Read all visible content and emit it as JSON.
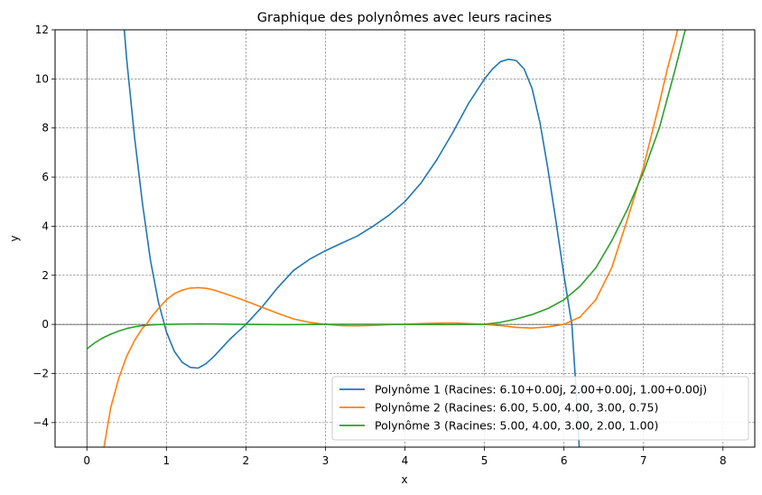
{
  "chart_data": {
    "type": "line",
    "title": "Graphique des polynômes avec leurs racines",
    "xlabel": "x",
    "ylabel": "y",
    "xlim": [
      -0.4,
      8.4
    ],
    "ylim": [
      -5,
      12
    ],
    "xticks": [
      0,
      1,
      2,
      3,
      4,
      5,
      6,
      7,
      8
    ],
    "yticks": [
      -4,
      -2,
      0,
      2,
      4,
      6,
      8,
      10,
      12
    ],
    "xtick_labels": [
      "0",
      "1",
      "2",
      "3",
      "4",
      "5",
      "6",
      "7",
      "8"
    ],
    "ytick_labels": [
      "−4",
      "−2",
      "0",
      "2",
      "4",
      "6",
      "8",
      "10",
      "12"
    ],
    "grid": true,
    "legend_position": "lower-right",
    "series": [
      {
        "name": "Polynôme 1 (Racines: 6.10+0.00j, 2.00+0.00j, 1.00+0.00j)",
        "color": "#1f77b4",
        "x": [
          0.45,
          0.5,
          0.6,
          0.7,
          0.8,
          0.9,
          1.0,
          1.1,
          1.2,
          1.3,
          1.4,
          1.5,
          1.6,
          1.7,
          1.8,
          1.9,
          2.0,
          2.2,
          2.4,
          2.6,
          2.8,
          3.0,
          3.2,
          3.4,
          3.6,
          3.8,
          4.0,
          4.2,
          4.4,
          4.6,
          4.8,
          5.0,
          5.1,
          5.2,
          5.3,
          5.4,
          5.5,
          5.6,
          5.7,
          5.8,
          5.9,
          6.0,
          6.1,
          6.15,
          6.2
        ],
        "y": [
          12.8,
          10.8,
          7.6,
          4.9,
          2.6,
          0.9,
          -0.3,
          -1.1,
          -1.55,
          -1.75,
          -1.78,
          -1.6,
          -1.3,
          -0.95,
          -0.6,
          -0.3,
          0.0,
          0.7,
          1.5,
          2.2,
          2.65,
          3.0,
          3.3,
          3.6,
          4.0,
          4.45,
          5.0,
          5.75,
          6.7,
          7.8,
          9.0,
          10.0,
          10.4,
          10.7,
          10.8,
          10.75,
          10.4,
          9.6,
          8.2,
          6.3,
          4.2,
          2.0,
          0.0,
          -2.5,
          -5.5
        ]
      },
      {
        "name": "Polynôme 2 (Racines: 6.00, 5.00, 4.00, 3.00, 0.75)",
        "color": "#ff7f0e",
        "x": [
          0.2,
          0.3,
          0.4,
          0.5,
          0.6,
          0.7,
          0.75,
          0.8,
          0.9,
          1.0,
          1.1,
          1.2,
          1.3,
          1.4,
          1.5,
          1.6,
          1.8,
          2.0,
          2.2,
          2.4,
          2.6,
          2.8,
          3.0,
          3.2,
          3.4,
          3.6,
          3.8,
          4.0,
          4.2,
          4.4,
          4.6,
          4.8,
          5.0,
          5.2,
          5.4,
          5.6,
          5.8,
          6.0,
          6.2,
          6.4,
          6.6,
          6.8,
          7.0,
          7.2,
          7.3,
          7.4,
          7.45
        ],
        "y": [
          -5.3,
          -3.4,
          -2.2,
          -1.3,
          -0.65,
          -0.15,
          0.0,
          0.25,
          0.65,
          1.0,
          1.25,
          1.4,
          1.48,
          1.5,
          1.47,
          1.4,
          1.18,
          0.95,
          0.7,
          0.45,
          0.22,
          0.08,
          0.0,
          -0.05,
          -0.06,
          -0.04,
          -0.01,
          0.0,
          0.03,
          0.05,
          0.06,
          0.03,
          0.0,
          -0.05,
          -0.12,
          -0.15,
          -0.1,
          0.0,
          0.3,
          1.0,
          2.3,
          4.3,
          6.4,
          9.0,
          10.4,
          11.6,
          12.3
        ]
      },
      {
        "name": "Polynôme 3 (Racines: 5.00, 4.00, 3.00, 2.00, 1.00)",
        "color": "#2ca02c",
        "x": [
          0.0,
          0.1,
          0.2,
          0.3,
          0.4,
          0.5,
          0.6,
          0.7,
          0.8,
          0.9,
          1.0,
          1.2,
          1.4,
          1.6,
          1.8,
          2.0,
          2.5,
          3.0,
          3.5,
          4.0,
          4.5,
          5.0,
          5.2,
          5.4,
          5.6,
          5.8,
          6.0,
          6.2,
          6.4,
          6.6,
          6.8,
          7.0,
          7.2,
          7.4,
          7.55
        ],
        "y": [
          -1.0,
          -0.75,
          -0.55,
          -0.4,
          -0.27,
          -0.17,
          -0.1,
          -0.05,
          -0.02,
          -0.005,
          0.0,
          0.01,
          0.02,
          0.015,
          0.008,
          0.0,
          -0.01,
          0.0,
          0.005,
          0.0,
          -0.005,
          0.0,
          0.08,
          0.22,
          0.4,
          0.65,
          1.0,
          1.55,
          2.3,
          3.4,
          4.7,
          6.2,
          8.0,
          10.4,
          12.3
        ]
      }
    ]
  }
}
